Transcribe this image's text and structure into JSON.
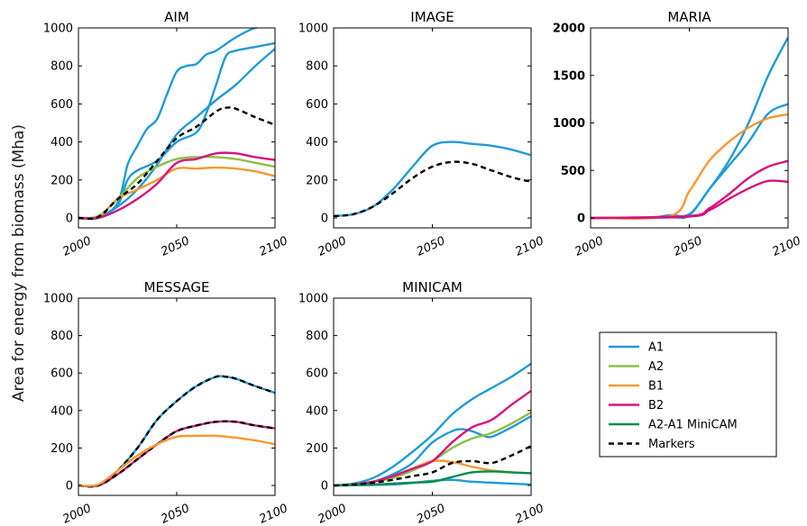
{
  "figure": {
    "ylabel": "Area for energy from biomass (Mha)"
  },
  "colors": {
    "A1": "#1f9bd5",
    "A2": "#8dbf44",
    "B1": "#f39a31",
    "B2": "#d6127d",
    "A2-A1 MiniCAM": "#0e8a4a",
    "Markers": "#000000"
  },
  "legend": {
    "placement": "lower-right",
    "entries": [
      {
        "label": "A1",
        "style": "solid"
      },
      {
        "label": "A2",
        "style": "solid"
      },
      {
        "label": "B1",
        "style": "solid"
      },
      {
        "label": "B2",
        "style": "solid"
      },
      {
        "label": "A2-A1 MiniCAM",
        "style": "solid"
      },
      {
        "label": "Markers",
        "style": "dashed"
      }
    ]
  },
  "chart_data": [
    {
      "type": "line",
      "title": "AIM",
      "xlim": [
        2000,
        2100
      ],
      "ylim": [
        0,
        1000
      ],
      "xticks": [
        "2000",
        "2050",
        "2100"
      ],
      "yticks": [
        "0",
        "200",
        "400",
        "600",
        "800",
        "1000"
      ],
      "bold_ticks": false,
      "series": [
        {
          "name": "A1",
          "x": [
            2000,
            2010,
            2020,
            2025,
            2030,
            2035,
            2040,
            2045,
            2050,
            2055,
            2060,
            2065,
            2070,
            2080,
            2090,
            2100
          ],
          "y": [
            0,
            0,
            80,
            280,
            380,
            470,
            520,
            650,
            770,
            800,
            810,
            860,
            880,
            950,
            1000,
            1010
          ]
        },
        {
          "name": "A1",
          "x": [
            2000,
            2010,
            2020,
            2025,
            2030,
            2040,
            2050,
            2060,
            2065,
            2070,
            2075,
            2080,
            2090,
            2100
          ],
          "y": [
            0,
            5,
            70,
            200,
            250,
            300,
            400,
            450,
            550,
            700,
            850,
            880,
            900,
            920
          ]
        },
        {
          "name": "A1",
          "x": [
            2000,
            2010,
            2020,
            2030,
            2040,
            2050,
            2060,
            2070,
            2080,
            2090,
            2100
          ],
          "y": [
            0,
            5,
            60,
            150,
            280,
            440,
            530,
            620,
            700,
            800,
            890
          ]
        },
        {
          "name": "A2",
          "x": [
            2000,
            2010,
            2020,
            2030,
            2040,
            2050,
            2060,
            2070,
            2080,
            2090,
            2100
          ],
          "y": [
            0,
            10,
            100,
            210,
            270,
            310,
            320,
            320,
            310,
            290,
            270
          ]
        },
        {
          "name": "B1",
          "x": [
            2000,
            2010,
            2020,
            2030,
            2040,
            2050,
            2060,
            2070,
            2080,
            2090,
            2100
          ],
          "y": [
            0,
            5,
            100,
            150,
            200,
            260,
            260,
            265,
            260,
            245,
            220
          ]
        },
        {
          "name": "B2",
          "x": [
            2000,
            2010,
            2020,
            2030,
            2040,
            2050,
            2060,
            2070,
            2080,
            2090,
            2100
          ],
          "y": [
            0,
            0,
            40,
            100,
            180,
            290,
            310,
            340,
            340,
            320,
            305
          ]
        },
        {
          "name": "Markers",
          "x": [
            2000,
            2010,
            2020,
            2030,
            2040,
            2050,
            2060,
            2070,
            2075,
            2080,
            2090,
            2100
          ],
          "y": [
            0,
            5,
            100,
            180,
            300,
            420,
            480,
            560,
            580,
            575,
            530,
            490
          ]
        }
      ]
    },
    {
      "type": "line",
      "title": "IMAGE",
      "xlim": [
        2000,
        2100
      ],
      "ylim": [
        0,
        1000
      ],
      "xticks": [
        "2000",
        "2050",
        "2100"
      ],
      "yticks": [
        "0",
        "200",
        "400",
        "600",
        "800",
        "1000"
      ],
      "bold_ticks": false,
      "series": [
        {
          "name": "A1",
          "x": [
            2000,
            2010,
            2020,
            2030,
            2040,
            2050,
            2060,
            2070,
            2080,
            2090,
            2100
          ],
          "y": [
            10,
            20,
            60,
            150,
            270,
            380,
            400,
            390,
            380,
            360,
            330
          ]
        },
        {
          "name": "Markers",
          "x": [
            2000,
            2010,
            2020,
            2030,
            2040,
            2050,
            2060,
            2070,
            2080,
            2090,
            2100
          ],
          "y": [
            10,
            20,
            60,
            130,
            210,
            270,
            295,
            285,
            250,
            215,
            190
          ]
        }
      ]
    },
    {
      "type": "line",
      "title": "MARIA",
      "xlim": [
        2000,
        2100
      ],
      "ylim": [
        0,
        2000
      ],
      "xticks": [
        "2000",
        "2050",
        "2100"
      ],
      "yticks": [
        "0",
        "500",
        "1000",
        "1500",
        "2000"
      ],
      "bold_ticks": true,
      "series": [
        {
          "name": "A1",
          "x": [
            2000,
            2030,
            2040,
            2050,
            2060,
            2070,
            2080,
            2090,
            2100
          ],
          "y": [
            0,
            5,
            30,
            40,
            300,
            600,
            1000,
            1500,
            1900
          ]
        },
        {
          "name": "A1",
          "x": [
            2000,
            2040,
            2050,
            2060,
            2070,
            2080,
            2090,
            2100
          ],
          "y": [
            0,
            5,
            30,
            300,
            550,
            800,
            1100,
            1200
          ]
        },
        {
          "name": "B1",
          "x": [
            2000,
            2040,
            2050,
            2060,
            2070,
            2080,
            2090,
            2100
          ],
          "y": [
            0,
            20,
            280,
            600,
            800,
            950,
            1050,
            1090
          ]
        },
        {
          "name": "B2",
          "x": [
            2000,
            2050,
            2060,
            2070,
            2080,
            2090,
            2100
          ],
          "y": [
            0,
            20,
            100,
            250,
            420,
            540,
            600
          ]
        },
        {
          "name": "B2",
          "x": [
            2000,
            2050,
            2060,
            2070,
            2080,
            2090,
            2100
          ],
          "y": [
            0,
            15,
            80,
            200,
            310,
            390,
            380
          ]
        }
      ]
    },
    {
      "type": "line",
      "title": "MESSAGE",
      "xlim": [
        2000,
        2100
      ],
      "ylim": [
        0,
        1000
      ],
      "xticks": [
        "2000",
        "2050",
        "2100"
      ],
      "yticks": [
        "0",
        "200",
        "400",
        "600",
        "800",
        "1000"
      ],
      "bold_ticks": false,
      "series": [
        {
          "name": "A1",
          "x": [
            2000,
            2010,
            2020,
            2030,
            2040,
            2050,
            2060,
            2070,
            2075,
            2080,
            2090,
            2100
          ],
          "y": [
            0,
            0,
            80,
            200,
            350,
            450,
            530,
            580,
            580,
            570,
            530,
            495
          ]
        },
        {
          "name": "Markers",
          "x": [
            2000,
            2010,
            2020,
            2030,
            2040,
            2050,
            2060,
            2070,
            2075,
            2080,
            2090,
            2100
          ],
          "y": [
            0,
            0,
            80,
            200,
            350,
            450,
            530,
            580,
            580,
            570,
            530,
            495
          ]
        },
        {
          "name": "B2",
          "x": [
            2000,
            2010,
            2020,
            2030,
            2040,
            2050,
            2060,
            2070,
            2080,
            2090,
            2100
          ],
          "y": [
            0,
            0,
            60,
            140,
            220,
            290,
            320,
            340,
            340,
            320,
            305
          ]
        },
        {
          "name": "Markers",
          "x": [
            2000,
            2010,
            2020,
            2030,
            2040,
            2050,
            2060,
            2070,
            2080,
            2090,
            2100
          ],
          "y": [
            0,
            0,
            60,
            140,
            220,
            290,
            320,
            340,
            340,
            320,
            305
          ]
        },
        {
          "name": "B1",
          "x": [
            2000,
            2010,
            2020,
            2030,
            2040,
            2050,
            2060,
            2070,
            2080,
            2090,
            2100
          ],
          "y": [
            0,
            5,
            80,
            160,
            220,
            260,
            265,
            265,
            255,
            240,
            220
          ]
        }
      ]
    },
    {
      "type": "line",
      "title": "MINICAM",
      "xlim": [
        2000,
        2100
      ],
      "ylim": [
        0,
        1000
      ],
      "xticks": [
        "2000",
        "2050",
        "2100"
      ],
      "yticks": [
        "0",
        "200",
        "400",
        "600",
        "800",
        "1000"
      ],
      "bold_ticks": false,
      "series": [
        {
          "name": "A1",
          "x": [
            2000,
            2010,
            2020,
            2030,
            2040,
            2050,
            2060,
            2070,
            2080,
            2090,
            2100
          ],
          "y": [
            0,
            10,
            40,
            100,
            180,
            270,
            380,
            460,
            520,
            580,
            650
          ]
        },
        {
          "name": "A1",
          "x": [
            2000,
            2010,
            2020,
            2030,
            2040,
            2050,
            2060,
            2065,
            2070,
            2075,
            2080,
            2090,
            2100
          ],
          "y": [
            0,
            5,
            20,
            60,
            120,
            230,
            290,
            300,
            290,
            270,
            260,
            310,
            370
          ]
        },
        {
          "name": "A1",
          "x": [
            2000,
            2030,
            2050,
            2060,
            2070,
            2080,
            2090,
            2100
          ],
          "y": [
            0,
            5,
            25,
            30,
            20,
            15,
            10,
            5
          ]
        },
        {
          "name": "A2",
          "x": [
            2000,
            2010,
            2020,
            2030,
            2040,
            2050,
            2060,
            2070,
            2080,
            2090,
            2100
          ],
          "y": [
            0,
            5,
            20,
            40,
            80,
            130,
            200,
            250,
            280,
            330,
            390
          ]
        },
        {
          "name": "B1",
          "x": [
            2000,
            2010,
            2020,
            2030,
            2040,
            2050,
            2060,
            2070,
            2080,
            2090,
            2100
          ],
          "y": [
            0,
            5,
            20,
            50,
            90,
            130,
            125,
            100,
            80,
            70,
            65
          ]
        },
        {
          "name": "B2",
          "x": [
            2000,
            2010,
            2020,
            2030,
            2040,
            2050,
            2060,
            2070,
            2080,
            2090,
            2100
          ],
          "y": [
            0,
            5,
            20,
            50,
            90,
            130,
            230,
            310,
            350,
            430,
            505
          ]
        },
        {
          "name": "A2-A1 MiniCAM",
          "x": [
            2000,
            2020,
            2040,
            2050,
            2060,
            2070,
            2080,
            2090,
            2100
          ],
          "y": [
            0,
            5,
            15,
            20,
            45,
            70,
            75,
            70,
            65
          ]
        },
        {
          "name": "Markers",
          "x": [
            2000,
            2010,
            2020,
            2030,
            2040,
            2050,
            2060,
            2070,
            2080,
            2090,
            2100
          ],
          "y": [
            0,
            5,
            15,
            30,
            50,
            70,
            120,
            130,
            120,
            160,
            210
          ]
        }
      ]
    }
  ]
}
